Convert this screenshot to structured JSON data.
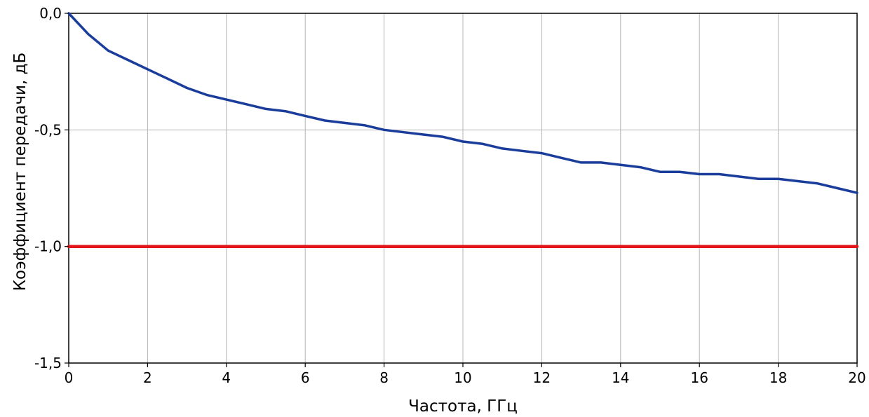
{
  "chart_data": {
    "type": "line",
    "title": "",
    "xlabel": "Частота, ГГц",
    "ylabel": "Коэффициент передачи, дБ",
    "xlim": [
      0,
      20
    ],
    "ylim": [
      -1.5,
      0
    ],
    "grid": true,
    "x_ticks": [
      {
        "value": 0,
        "label": "0"
      },
      {
        "value": 2,
        "label": "2"
      },
      {
        "value": 4,
        "label": "4"
      },
      {
        "value": 6,
        "label": "6"
      },
      {
        "value": 8,
        "label": "8"
      },
      {
        "value": 10,
        "label": "10"
      },
      {
        "value": 12,
        "label": "12"
      },
      {
        "value": 14,
        "label": "14"
      },
      {
        "value": 16,
        "label": "16"
      },
      {
        "value": 18,
        "label": "18"
      },
      {
        "value": 20,
        "label": "20"
      }
    ],
    "y_ticks": [
      {
        "value": 0,
        "label": "0,0"
      },
      {
        "value": -0.5,
        "label": "-0,5"
      },
      {
        "value": -1.0,
        "label": "-1,0"
      },
      {
        "value": -1.5,
        "label": "-1,5"
      }
    ],
    "series": [
      {
        "color": "#1a3d9c",
        "x": [
          0,
          0.5,
          1,
          1.5,
          2,
          2.5,
          3,
          3.5,
          4,
          4.5,
          5,
          5.5,
          6,
          6.5,
          7,
          7.5,
          8,
          8.5,
          9,
          9.5,
          10,
          10.5,
          11,
          11.5,
          12,
          12.5,
          13,
          13.5,
          14,
          14.5,
          15,
          15.5,
          16,
          16.5,
          17,
          17.5,
          18,
          18.5,
          19,
          19.5,
          20
        ],
        "values": [
          0.0,
          -0.09,
          -0.16,
          -0.2,
          -0.24,
          -0.28,
          -0.32,
          -0.35,
          -0.37,
          -0.39,
          -0.41,
          -0.42,
          -0.44,
          -0.46,
          -0.47,
          -0.48,
          -0.5,
          -0.51,
          -0.52,
          -0.53,
          -0.55,
          -0.56,
          -0.58,
          -0.59,
          -0.6,
          -0.62,
          -0.64,
          -0.64,
          -0.65,
          -0.66,
          -0.68,
          -0.68,
          -0.69,
          -0.69,
          -0.7,
          -0.71,
          -0.71,
          -0.72,
          -0.73,
          -0.75,
          -0.77
        ]
      },
      {
        "color": "#e3161b",
        "x": [
          0,
          20
        ],
        "values": [
          -1.0,
          -1.0
        ]
      }
    ]
  }
}
